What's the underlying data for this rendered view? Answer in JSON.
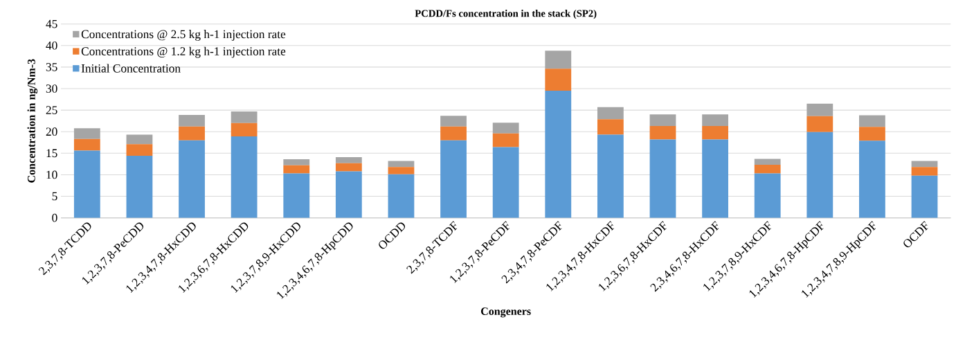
{
  "chart_data": {
    "type": "bar",
    "stacked": true,
    "title": "PCDD/Fs concentration in the stack (SP2)",
    "xlabel": "Congeners",
    "ylabel": "Concentration in ng/Nm-3",
    "categories": [
      "2,3,7,8-TCDD",
      "1,2,3,7,8-PeCDD",
      "1,2,3,4,7,8-HxCDD",
      "1,2,3,6,7,8-HxCDD",
      "1,2,3,7,8,9-HxCDD",
      "1,2,3,4,6,7,8-HpCDD",
      "OCDD",
      "2,3,7,8-TCDF",
      "1,2,3,7,8-PeCDF",
      "2,3,4,7,8-PeCDF",
      "1,2,3,4,7,8-HxCDF",
      "1,2,3,6,7,8-HxCDF",
      "2,3,4,6,7,8-HxCDF",
      "1,2,3,7,8,9-HxCDF",
      "1,2,3,4,6,7,8-HpCDF",
      "1,2,3,4,7,8,9-HpCDF",
      "OCDF"
    ],
    "series": [
      {
        "name": "Initial Concentration",
        "color": "#5b9bd5",
        "values": [
          15.6,
          14.4,
          18.0,
          18.9,
          10.3,
          10.8,
          10.1,
          18.0,
          16.4,
          29.5,
          19.3,
          18.2,
          18.2,
          10.3,
          19.9,
          17.9,
          9.8
        ]
      },
      {
        "name": "Concentrations @ 1.2 kg h-1 injection rate",
        "color": "#ed7d31",
        "values": [
          2.7,
          2.7,
          3.2,
          3.1,
          1.9,
          1.9,
          1.7,
          3.2,
          3.2,
          5.1,
          3.6,
          3.1,
          3.1,
          2.0,
          3.7,
          3.2,
          2.0
        ]
      },
      {
        "name": "Concentrations @ 2.5 kg h-1 injection rate",
        "color": "#a5a5a5",
        "values": [
          2.5,
          2.2,
          2.7,
          2.7,
          1.4,
          1.4,
          1.4,
          2.5,
          2.5,
          4.2,
          2.8,
          2.7,
          2.7,
          1.4,
          2.9,
          2.7,
          1.4
        ]
      }
    ],
    "ylim": [
      0,
      45
    ],
    "yticks": [
      0,
      5,
      10,
      15,
      20,
      25,
      30,
      35,
      40,
      45
    ],
    "grid": "y",
    "legend": "top left"
  }
}
